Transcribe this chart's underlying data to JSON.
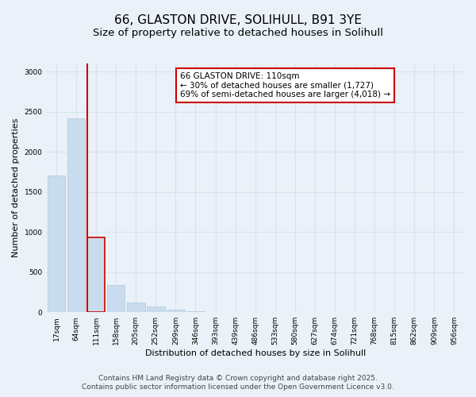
{
  "title_line1": "66, GLASTON DRIVE, SOLIHULL, B91 3YE",
  "title_line2": "Size of property relative to detached houses in Solihull",
  "xlabel": "Distribution of detached houses by size in Solihull",
  "ylabel": "Number of detached properties",
  "categories": [
    "17sqm",
    "64sqm",
    "111sqm",
    "158sqm",
    "205sqm",
    "252sqm",
    "299sqm",
    "346sqm",
    "393sqm",
    "439sqm",
    "486sqm",
    "533sqm",
    "580sqm",
    "627sqm",
    "674sqm",
    "721sqm",
    "768sqm",
    "815sqm",
    "862sqm",
    "909sqm",
    "956sqm"
  ],
  "values": [
    1700,
    2420,
    930,
    340,
    120,
    70,
    30,
    10,
    5,
    2,
    1,
    0,
    0,
    0,
    0,
    0,
    0,
    0,
    0,
    0,
    0
  ],
  "bar_color": "#c9dced",
  "bar_edge_color": "#aec8de",
  "highlight_bar_index": 2,
  "highlight_line_color": "#cc0000",
  "annotation_text": "66 GLASTON DRIVE: 110sqm\n← 30% of detached houses are smaller (1,727)\n69% of semi-detached houses are larger (4,018) →",
  "annotation_box_color": "#ffffff",
  "annotation_box_edge_color": "#cc0000",
  "ylim": [
    0,
    3100
  ],
  "yticks": [
    0,
    500,
    1000,
    1500,
    2000,
    2500,
    3000
  ],
  "grid_color": "#d5e4ef",
  "bg_color": "#eaf1f8",
  "plot_bg_color": "#eaf1f8",
  "footer_line1": "Contains HM Land Registry data © Crown copyright and database right 2025.",
  "footer_line2": "Contains public sector information licensed under the Open Government Licence v3.0.",
  "title_fontsize": 11,
  "subtitle_fontsize": 9.5,
  "axis_label_fontsize": 8,
  "tick_fontsize": 6.5,
  "annotation_fontsize": 7.5,
  "footer_fontsize": 6.5
}
